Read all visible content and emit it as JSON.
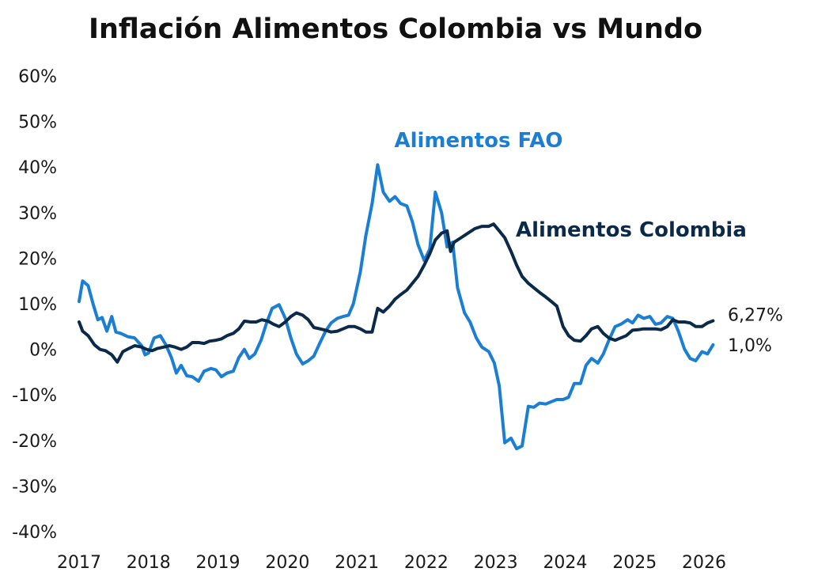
{
  "chart_data": {
    "type": "line",
    "title": "Inflación Alimentos Colombia vs Mundo",
    "xlabel": "",
    "ylabel": "",
    "y_ticks": [
      "60%",
      "50%",
      "40%",
      "30%",
      "20%",
      "10%",
      "0%",
      "-10%",
      "-20%",
      "-30%",
      "-40%"
    ],
    "y_tick_values": [
      60,
      50,
      40,
      30,
      20,
      10,
      0,
      -10,
      -20,
      -30,
      -40
    ],
    "ylim": [
      -40,
      60
    ],
    "x_ticks": [
      "2017",
      "2018",
      "2019",
      "2020",
      "2021",
      "2022",
      "2023",
      "2024",
      "2025",
      "2026"
    ],
    "x_tick_values": [
      2017,
      2018,
      2019,
      2020,
      2021,
      2022,
      2023,
      2024,
      2025,
      2026
    ],
    "xlim": [
      2017,
      2026.4
    ],
    "grid": false,
    "legend": "none",
    "series": [
      {
        "name": "Alimentos FAO",
        "color": "#1a7fd4",
        "end_label": "1,0%",
        "points": [
          [
            2017.0,
            10.5
          ],
          [
            2017.05,
            15.0
          ],
          [
            2017.13,
            14.0
          ],
          [
            2017.2,
            10.0
          ],
          [
            2017.27,
            6.5
          ],
          [
            2017.33,
            7.0
          ],
          [
            2017.4,
            4.0
          ],
          [
            2017.47,
            7.2
          ],
          [
            2017.53,
            3.8
          ],
          [
            2017.6,
            3.5
          ],
          [
            2017.7,
            2.8
          ],
          [
            2017.8,
            2.5
          ],
          [
            2017.9,
            0.8
          ],
          [
            2017.95,
            -1.2
          ],
          [
            2018.0,
            -0.8
          ],
          [
            2018.08,
            2.5
          ],
          [
            2018.17,
            3.0
          ],
          [
            2018.25,
            1.0
          ],
          [
            2018.33,
            -1.8
          ],
          [
            2018.4,
            -5.2
          ],
          [
            2018.47,
            -3.5
          ],
          [
            2018.55,
            -5.8
          ],
          [
            2018.63,
            -6.0
          ],
          [
            2018.72,
            -7.0
          ],
          [
            2018.8,
            -4.8
          ],
          [
            2018.9,
            -4.2
          ],
          [
            2018.97,
            -4.5
          ],
          [
            2019.05,
            -6.0
          ],
          [
            2019.13,
            -5.2
          ],
          [
            2019.22,
            -4.8
          ],
          [
            2019.3,
            -1.8
          ],
          [
            2019.38,
            0.0
          ],
          [
            2019.45,
            -2.0
          ],
          [
            2019.53,
            -1.0
          ],
          [
            2019.62,
            2.0
          ],
          [
            2019.7,
            5.8
          ],
          [
            2019.78,
            9.0
          ],
          [
            2019.88,
            9.8
          ],
          [
            2019.97,
            6.8
          ],
          [
            2020.05,
            2.5
          ],
          [
            2020.13,
            -1.0
          ],
          [
            2020.22,
            -3.2
          ],
          [
            2020.3,
            -2.5
          ],
          [
            2020.38,
            -1.5
          ],
          [
            2020.47,
            1.5
          ],
          [
            2020.55,
            4.0
          ],
          [
            2020.63,
            5.8
          ],
          [
            2020.72,
            6.8
          ],
          [
            2020.8,
            7.2
          ],
          [
            2020.88,
            7.5
          ],
          [
            2020.95,
            10.0
          ],
          [
            2021.05,
            17.0
          ],
          [
            2021.13,
            25.0
          ],
          [
            2021.22,
            32.0
          ],
          [
            2021.3,
            40.5
          ],
          [
            2021.38,
            34.5
          ],
          [
            2021.47,
            32.5
          ],
          [
            2021.55,
            33.5
          ],
          [
            2021.63,
            32.0
          ],
          [
            2021.72,
            31.5
          ],
          [
            2021.8,
            28.0
          ],
          [
            2021.88,
            23.0
          ],
          [
            2021.97,
            19.5
          ],
          [
            2022.05,
            22.0
          ],
          [
            2022.13,
            34.5
          ],
          [
            2022.22,
            30.0
          ],
          [
            2022.3,
            22.5
          ],
          [
            2022.38,
            23.5
          ],
          [
            2022.45,
            13.5
          ],
          [
            2022.55,
            8.0
          ],
          [
            2022.63,
            6.0
          ],
          [
            2022.72,
            2.5
          ],
          [
            2022.8,
            0.5
          ],
          [
            2022.9,
            -0.5
          ],
          [
            2022.98,
            -3.0
          ],
          [
            2023.05,
            -8.0
          ],
          [
            2023.13,
            -20.5
          ],
          [
            2023.22,
            -19.5
          ],
          [
            2023.3,
            -21.8
          ],
          [
            2023.38,
            -21.2
          ],
          [
            2023.47,
            -12.5
          ],
          [
            2023.55,
            -12.7
          ],
          [
            2023.63,
            -11.8
          ],
          [
            2023.72,
            -12.0
          ],
          [
            2023.8,
            -11.5
          ],
          [
            2023.88,
            -11.0
          ],
          [
            2023.97,
            -11.0
          ],
          [
            2024.05,
            -10.5
          ],
          [
            2024.13,
            -7.5
          ],
          [
            2024.22,
            -7.5
          ],
          [
            2024.3,
            -3.5
          ],
          [
            2024.38,
            -2.0
          ],
          [
            2024.47,
            -3.0
          ],
          [
            2024.55,
            -1.0
          ],
          [
            2024.63,
            2.0
          ],
          [
            2024.72,
            5.0
          ],
          [
            2024.8,
            5.5
          ],
          [
            2024.9,
            6.5
          ],
          [
            2024.97,
            5.8
          ],
          [
            2025.05,
            7.5
          ],
          [
            2025.13,
            6.8
          ],
          [
            2025.22,
            7.2
          ],
          [
            2025.3,
            5.5
          ],
          [
            2025.38,
            5.8
          ],
          [
            2025.47,
            7.2
          ],
          [
            2025.55,
            6.8
          ],
          [
            2025.63,
            4.0
          ],
          [
            2025.72,
            0.0
          ],
          [
            2025.8,
            -2.0
          ],
          [
            2025.88,
            -2.5
          ],
          [
            2025.97,
            -0.5
          ],
          [
            2026.05,
            -1.0
          ],
          [
            2026.13,
            1.0
          ]
        ]
      },
      {
        "name": "Alimentos Colombia",
        "color": "#0b2a4a",
        "end_label": "6,27%",
        "points": [
          [
            2017.0,
            6.0
          ],
          [
            2017.05,
            4.0
          ],
          [
            2017.13,
            3.0
          ],
          [
            2017.22,
            1.0
          ],
          [
            2017.3,
            0.0
          ],
          [
            2017.38,
            -0.3
          ],
          [
            2017.47,
            -1.2
          ],
          [
            2017.55,
            -2.8
          ],
          [
            2017.63,
            -0.5
          ],
          [
            2017.72,
            0.2
          ],
          [
            2017.8,
            0.8
          ],
          [
            2017.9,
            0.5
          ],
          [
            2017.97,
            0.0
          ],
          [
            2018.05,
            -0.3
          ],
          [
            2018.13,
            0.2
          ],
          [
            2018.22,
            0.5
          ],
          [
            2018.3,
            0.8
          ],
          [
            2018.38,
            0.5
          ],
          [
            2018.47,
            0.0
          ],
          [
            2018.55,
            0.5
          ],
          [
            2018.63,
            1.5
          ],
          [
            2018.72,
            1.5
          ],
          [
            2018.8,
            1.3
          ],
          [
            2018.88,
            1.8
          ],
          [
            2018.97,
            2.0
          ],
          [
            2019.05,
            2.3
          ],
          [
            2019.13,
            3.0
          ],
          [
            2019.22,
            3.5
          ],
          [
            2019.3,
            4.5
          ],
          [
            2019.38,
            6.2
          ],
          [
            2019.47,
            6.0
          ],
          [
            2019.55,
            6.0
          ],
          [
            2019.63,
            6.5
          ],
          [
            2019.72,
            6.2
          ],
          [
            2019.8,
            5.5
          ],
          [
            2019.88,
            5.0
          ],
          [
            2019.97,
            6.0
          ],
          [
            2020.05,
            7.2
          ],
          [
            2020.13,
            8.0
          ],
          [
            2020.22,
            7.5
          ],
          [
            2020.3,
            6.5
          ],
          [
            2020.38,
            4.8
          ],
          [
            2020.47,
            4.5
          ],
          [
            2020.55,
            4.2
          ],
          [
            2020.63,
            3.8
          ],
          [
            2020.72,
            4.0
          ],
          [
            2020.8,
            4.5
          ],
          [
            2020.88,
            5.0
          ],
          [
            2020.97,
            5.0
          ],
          [
            2021.05,
            4.5
          ],
          [
            2021.13,
            3.8
          ],
          [
            2021.22,
            3.8
          ],
          [
            2021.3,
            9.0
          ],
          [
            2021.38,
            8.2
          ],
          [
            2021.47,
            9.5
          ],
          [
            2021.55,
            11.0
          ],
          [
            2021.63,
            12.0
          ],
          [
            2021.72,
            13.0
          ],
          [
            2021.8,
            14.5
          ],
          [
            2021.88,
            16.0
          ],
          [
            2021.97,
            18.5
          ],
          [
            2022.05,
            21.0
          ],
          [
            2022.13,
            24.0
          ],
          [
            2022.22,
            25.5
          ],
          [
            2022.3,
            26.0
          ],
          [
            2022.35,
            21.5
          ],
          [
            2022.4,
            23.5
          ],
          [
            2022.5,
            24.5
          ],
          [
            2022.6,
            25.5
          ],
          [
            2022.7,
            26.5
          ],
          [
            2022.8,
            27.0
          ],
          [
            2022.9,
            27.0
          ],
          [
            2022.97,
            27.5
          ],
          [
            2023.05,
            26.0
          ],
          [
            2023.13,
            24.5
          ],
          [
            2023.22,
            21.5
          ],
          [
            2023.3,
            18.5
          ],
          [
            2023.38,
            16.0
          ],
          [
            2023.47,
            14.5
          ],
          [
            2023.55,
            13.5
          ],
          [
            2023.63,
            12.5
          ],
          [
            2023.72,
            11.5
          ],
          [
            2023.8,
            10.5
          ],
          [
            2023.88,
            9.5
          ],
          [
            2023.97,
            5.0
          ],
          [
            2024.05,
            3.0
          ],
          [
            2024.13,
            2.0
          ],
          [
            2024.22,
            1.8
          ],
          [
            2024.3,
            3.0
          ],
          [
            2024.38,
            4.5
          ],
          [
            2024.47,
            5.0
          ],
          [
            2024.55,
            3.5
          ],
          [
            2024.63,
            2.5
          ],
          [
            2024.72,
            2.0
          ],
          [
            2024.8,
            2.5
          ],
          [
            2024.88,
            3.0
          ],
          [
            2024.97,
            4.2
          ],
          [
            2025.05,
            4.3
          ],
          [
            2025.13,
            4.5
          ],
          [
            2025.22,
            4.5
          ],
          [
            2025.3,
            4.5
          ],
          [
            2025.38,
            4.3
          ],
          [
            2025.47,
            5.0
          ],
          [
            2025.55,
            6.5
          ],
          [
            2025.63,
            6.0
          ],
          [
            2025.72,
            6.0
          ],
          [
            2025.8,
            5.8
          ],
          [
            2025.88,
            5.0
          ],
          [
            2025.97,
            5.0
          ],
          [
            2026.05,
            5.8
          ],
          [
            2026.13,
            6.27
          ]
        ]
      }
    ]
  }
}
